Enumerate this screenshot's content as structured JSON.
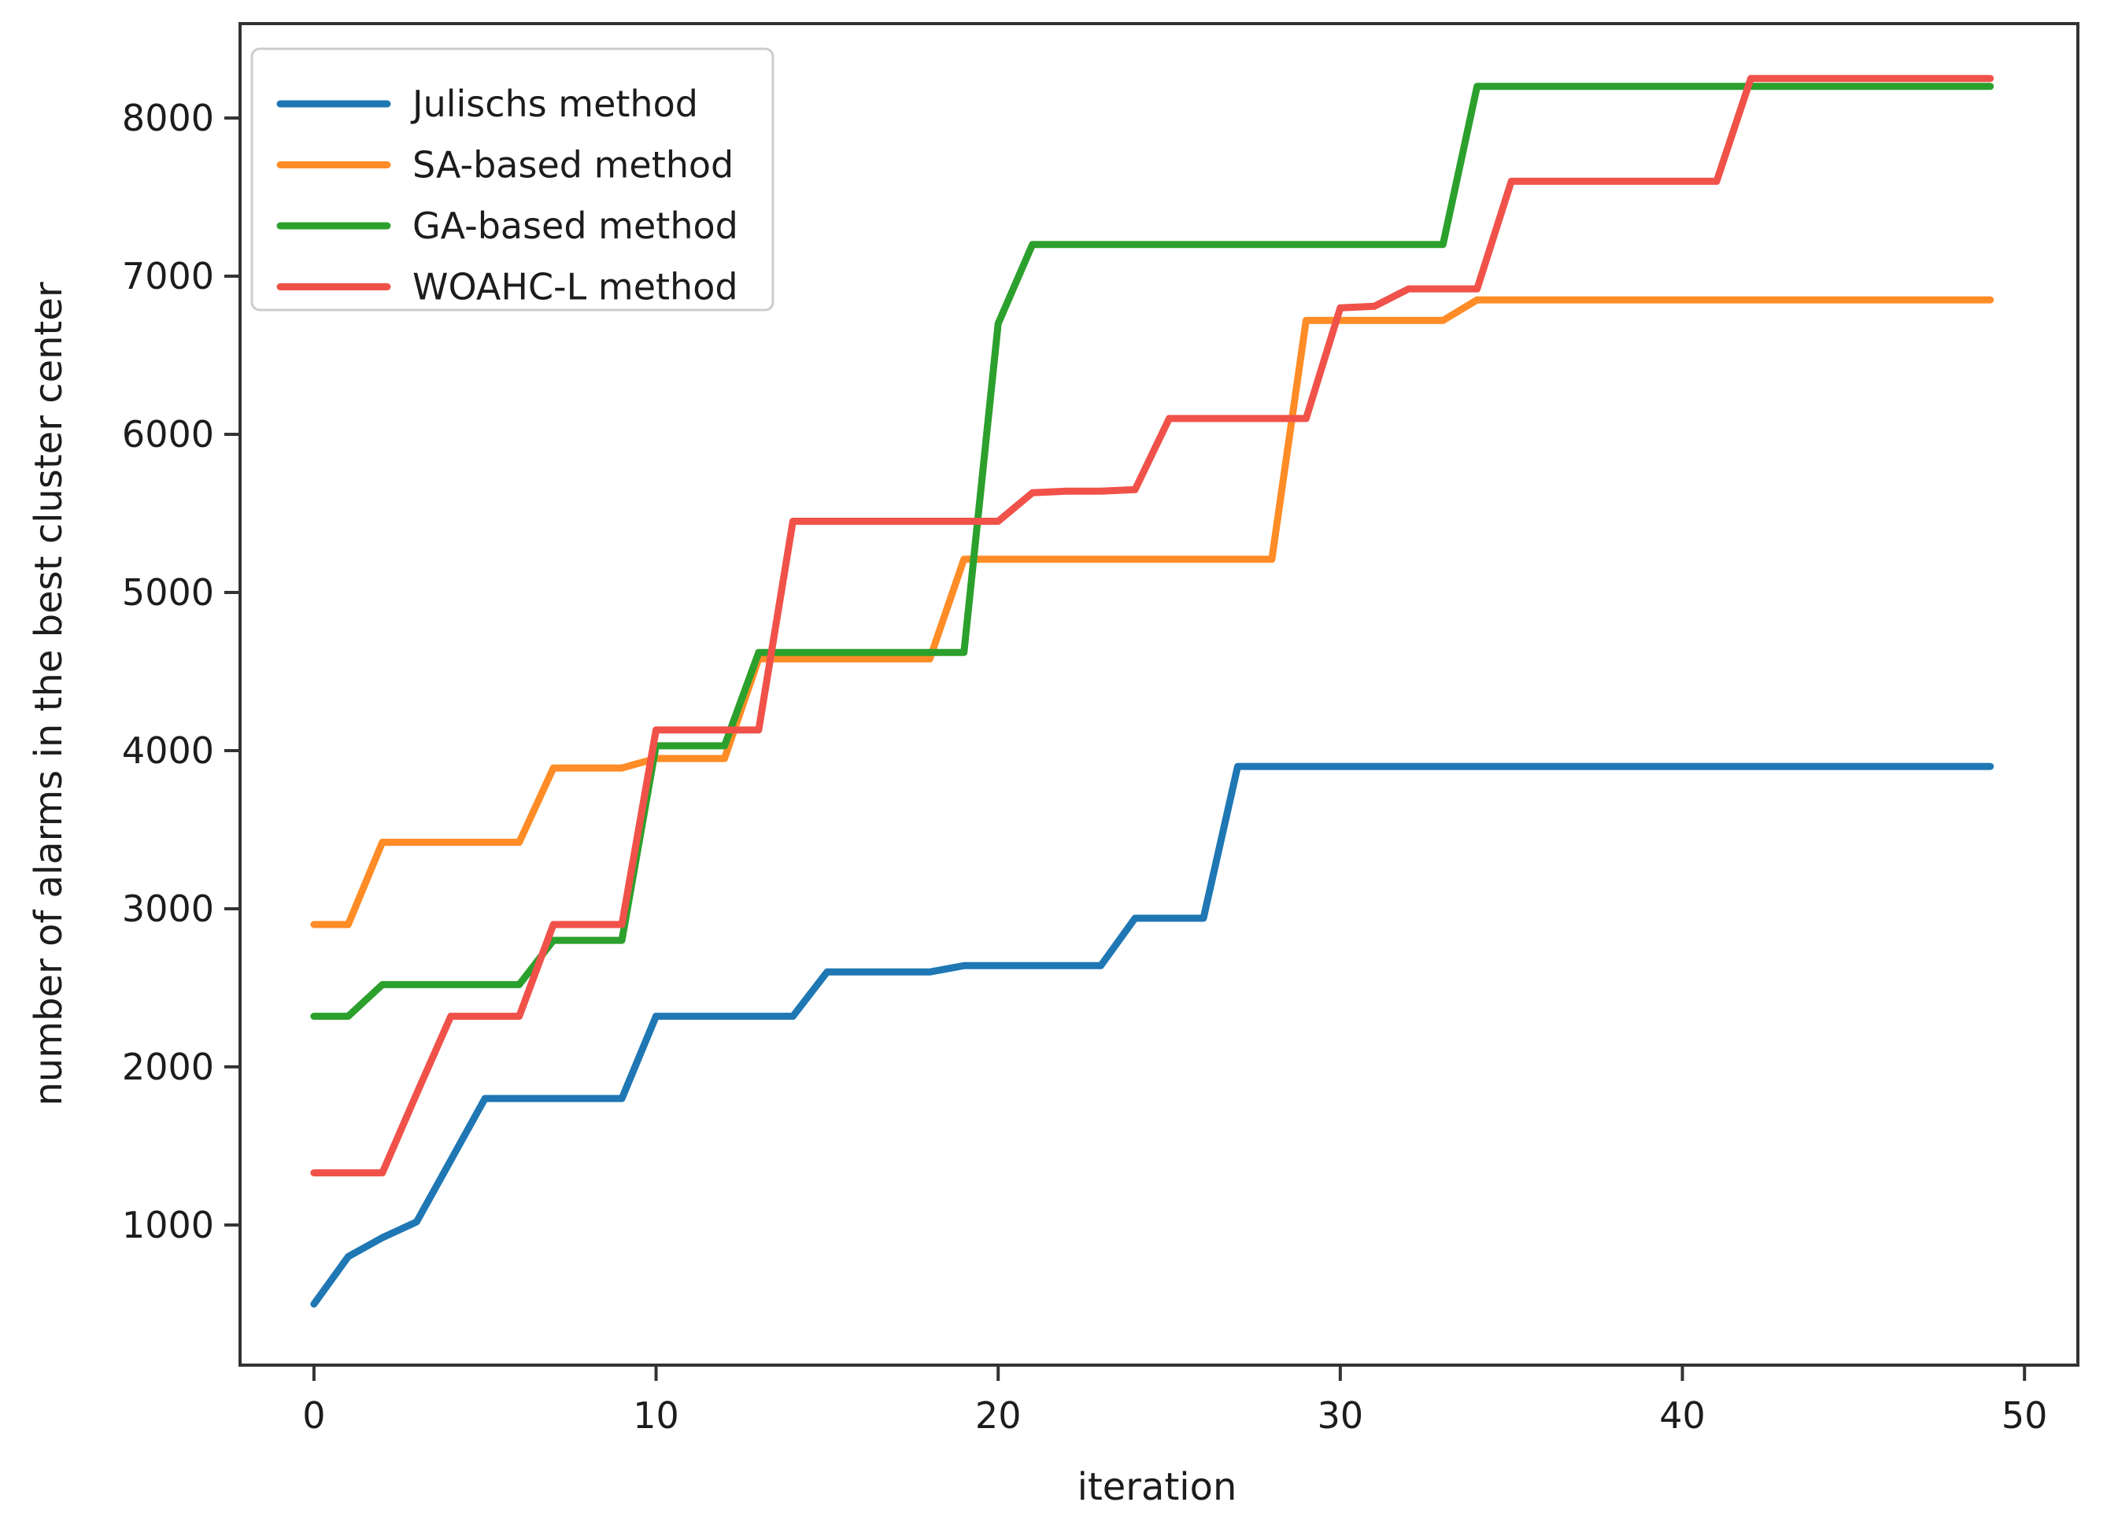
{
  "figure": {
    "background": "#ffffff",
    "frame_color": "#333333",
    "tick_color": "#333333",
    "text_color": "#1c1c1c",
    "legend_border_color": "#cccccc",
    "legend_background": "#ffffff"
  },
  "chart_data": {
    "type": "line",
    "title": "",
    "xlabel": "iteration",
    "ylabel": "number of alarms in the best cluster center",
    "x_ticks": [
      0,
      10,
      20,
      30,
      40,
      50
    ],
    "y_ticks": [
      1000,
      2000,
      3000,
      4000,
      5000,
      6000,
      7000,
      8000
    ],
    "xlim": [
      -2.16,
      51.56
    ],
    "ylim": [
      114,
      8597
    ],
    "grid": false,
    "legend_position": "upper left",
    "line_width": 9,
    "x": [
      0,
      1,
      2,
      3,
      4,
      5,
      6,
      7,
      8,
      9,
      10,
      11,
      12,
      13,
      14,
      15,
      16,
      17,
      18,
      19,
      20,
      21,
      22,
      23,
      24,
      25,
      26,
      27,
      28,
      29,
      30,
      31,
      32,
      33,
      34,
      35,
      36,
      37,
      38,
      39,
      40,
      41,
      42,
      43,
      44,
      45,
      46,
      47,
      48,
      49
    ],
    "series": [
      {
        "name": "Julischs method",
        "color": "#1f77b4",
        "values": [
          500,
          800,
          920,
          1020,
          1410,
          1800,
          1800,
          1800,
          1800,
          1800,
          2320,
          2320,
          2320,
          2320,
          2320,
          2600,
          2600,
          2600,
          2600,
          2640,
          2640,
          2640,
          2640,
          2640,
          2940,
          2940,
          2940,
          3900,
          3900,
          3900,
          3900,
          3900,
          3900,
          3900,
          3900,
          3900,
          3900,
          3900,
          3900,
          3900,
          3900,
          3900,
          3900,
          3900,
          3900,
          3900,
          3900,
          3900,
          3900,
          3900
        ]
      },
      {
        "name": "SA-based method",
        "color": "#ff8c26",
        "values": [
          2900,
          2900,
          3420,
          3420,
          3420,
          3420,
          3420,
          3890,
          3890,
          3890,
          3950,
          3950,
          3950,
          4580,
          4580,
          4580,
          4580,
          4580,
          4580,
          5210,
          5210,
          5210,
          5210,
          5210,
          5210,
          5210,
          5210,
          5210,
          5210,
          6720,
          6720,
          6720,
          6720,
          6720,
          6850,
          6850,
          6850,
          6850,
          6850,
          6850,
          6850,
          6850,
          6850,
          6850,
          6850,
          6850,
          6850,
          6850,
          6850,
          6850
        ]
      },
      {
        "name": "GA-based method",
        "color": "#2ca02c",
        "values": [
          2320,
          2320,
          2520,
          2520,
          2520,
          2520,
          2520,
          2800,
          2800,
          2800,
          4030,
          4030,
          4030,
          4620,
          4620,
          4620,
          4620,
          4620,
          4620,
          4620,
          6700,
          7200,
          7200,
          7200,
          7200,
          7200,
          7200,
          7200,
          7200,
          7200,
          7200,
          7200,
          7200,
          7200,
          8200,
          8200,
          8200,
          8200,
          8200,
          8200,
          8200,
          8200,
          8200,
          8200,
          8200,
          8200,
          8200,
          8200,
          8200,
          8200
        ]
      },
      {
        "name": "WOAHC-L method",
        "color": "#f0524a",
        "values": [
          1330,
          1330,
          1330,
          1830,
          2320,
          2320,
          2320,
          2900,
          2900,
          2900,
          4130,
          4130,
          4130,
          4130,
          5450,
          5450,
          5450,
          5450,
          5450,
          5450,
          5450,
          5630,
          5640,
          5640,
          5650,
          6100,
          6100,
          6100,
          6100,
          6100,
          6800,
          6810,
          6920,
          6920,
          6920,
          7600,
          7600,
          7600,
          7600,
          7600,
          7600,
          7600,
          8250,
          8250,
          8250,
          8250,
          8250,
          8250,
          8250,
          8250
        ]
      }
    ]
  }
}
